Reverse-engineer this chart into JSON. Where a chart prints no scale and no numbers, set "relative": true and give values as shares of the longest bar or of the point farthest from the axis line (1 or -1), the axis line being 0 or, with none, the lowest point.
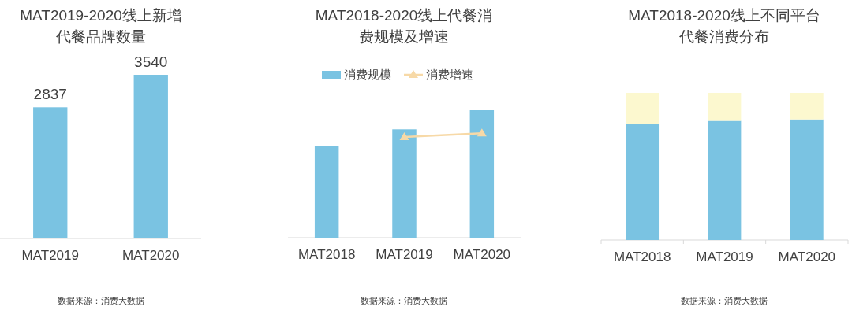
{
  "chart_data": [
    {
      "type": "bar",
      "title": "MAT2019-2020线上新增代餐品牌数量",
      "categories": [
        "MAT2019",
        "MAT2020"
      ],
      "values": [
        2837,
        3540
      ],
      "color": "#7ac3e2",
      "data_labels": true,
      "annotations": [
        "数据来源：消费大数据"
      ]
    },
    {
      "type": "bar",
      "title": "MAT2018-2020线上代餐消费规模及增速",
      "categories": [
        "MAT2018",
        "MAT2019",
        "MAT2020"
      ],
      "relative": true,
      "legend": "top",
      "marker": "triangle",
      "series": [
        {
          "name": "消费规模",
          "color": "#7ac3e2",
          "values": [
            0.72,
            0.85,
            1
          ]
        },
        {
          "name": "消费增速",
          "type": "line",
          "color": "#f7d9a7",
          "values": [
            null,
            0.79,
            0.82
          ]
        }
      ],
      "annotations": [
        "数据来源：消费大数据"
      ]
    },
    {
      "type": "bar",
      "title": "MAT2018-2020线上不同平台代餐消费分布",
      "categories": [
        "MAT2018",
        "MAT2019",
        "MAT2020"
      ],
      "relative": true,
      "stacked": true,
      "series": [
        {
          "color": "#7ac3e2",
          "values": [
            0.79,
            0.81,
            0.82
          ]
        },
        {
          "color": "#fcf8cf",
          "values": [
            0.21,
            0.19,
            0.18
          ]
        }
      ],
      "annotations": [
        "数据来源：消费大数据"
      ]
    }
  ]
}
